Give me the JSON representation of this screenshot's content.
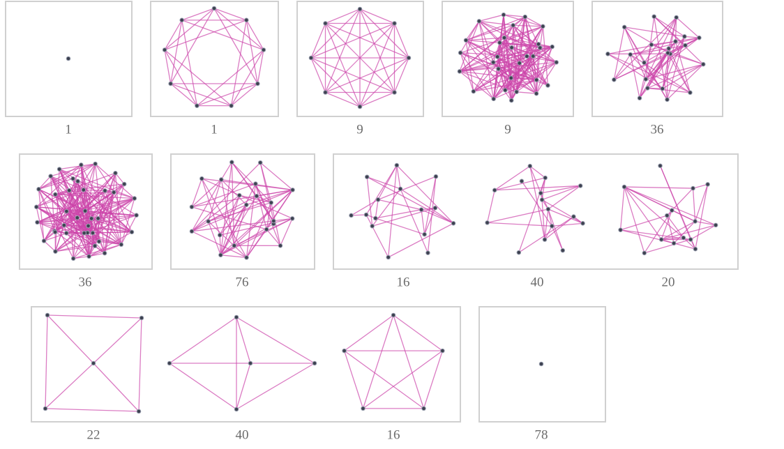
{
  "labels": [
    1,
    1,
    9,
    9,
    36,
    36,
    76,
    16,
    40,
    20,
    22,
    40,
    16,
    78
  ]
}
